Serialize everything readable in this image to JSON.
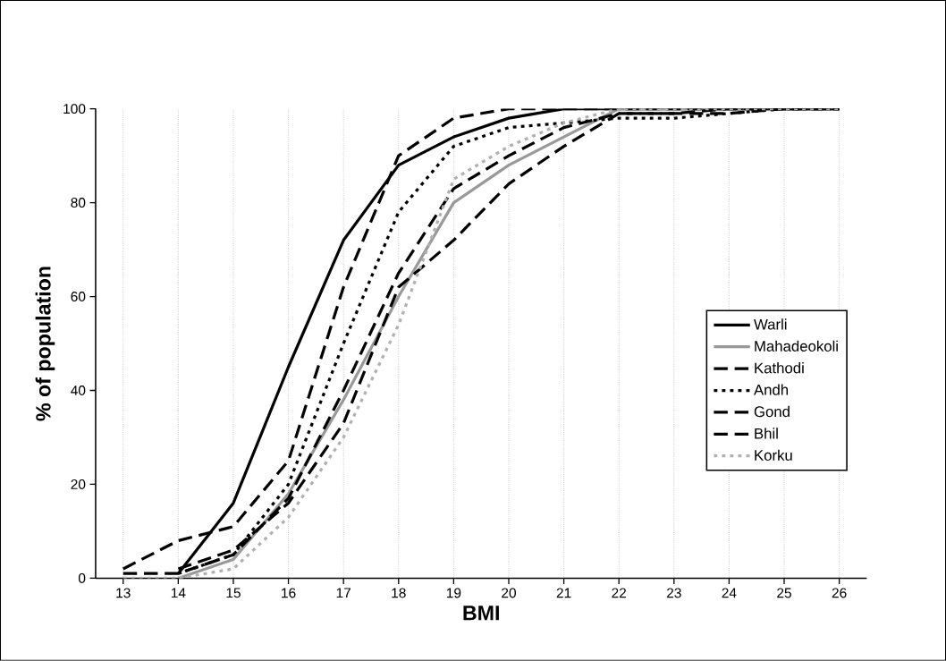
{
  "chart_data": {
    "type": "line",
    "xlabel": "BMI",
    "ylabel": "% of population",
    "xlim": [
      12.5,
      26.5
    ],
    "xticks": [
      13,
      14,
      15,
      16,
      17,
      18,
      19,
      20,
      21,
      22,
      23,
      24,
      25,
      26
    ],
    "ylim": [
      0,
      100
    ],
    "yticks": [
      0,
      20,
      40,
      60,
      80,
      100
    ],
    "grid": "x",
    "legend": "right",
    "marker": "none",
    "series": [
      {
        "name": "Warli",
        "color": "#000000",
        "line_style": "solid",
        "x": [
          14,
          15,
          16,
          17,
          18,
          19,
          20,
          21,
          22,
          23,
          24,
          25,
          26
        ],
        "values": [
          1,
          16,
          45,
          72,
          88,
          94,
          98,
          100,
          100,
          100,
          100,
          100,
          100
        ]
      },
      {
        "name": "Mahadeokoli",
        "color": "#999999",
        "line_style": "solid",
        "x": [
          14,
          15,
          16,
          17,
          18,
          19,
          20,
          21,
          22,
          23,
          24,
          25,
          26
        ],
        "values": [
          0,
          4,
          18,
          38,
          60,
          80,
          88,
          94,
          100,
          100,
          100,
          100,
          100
        ]
      },
      {
        "name": "Kathodi",
        "color": "#000000",
        "line_style": "dashed",
        "x": [
          13,
          14,
          15,
          16,
          17,
          18,
          19,
          20,
          21,
          22,
          23,
          24,
          25,
          26
        ],
        "values": [
          2,
          8,
          11,
          25,
          62,
          90,
          98,
          100,
          100,
          100,
          100,
          100,
          100,
          100
        ]
      },
      {
        "name": "Andh",
        "color": "#000000",
        "line_style": "dotted",
        "x": [
          14,
          15,
          16,
          17,
          18,
          19,
          20,
          21,
          22,
          23,
          24,
          25,
          26
        ],
        "values": [
          1,
          5,
          20,
          50,
          78,
          92,
          96,
          97,
          98,
          98,
          99,
          100,
          100
        ]
      },
      {
        "name": "Gond",
        "color": "#000000",
        "line_style": "dashed",
        "x": [
          13,
          14,
          15,
          16,
          17,
          18,
          19,
          20,
          21,
          22,
          23,
          24,
          25,
          26
        ],
        "values": [
          1,
          1,
          5,
          17,
          40,
          65,
          83,
          90,
          96,
          99,
          99,
          100,
          100,
          100
        ]
      },
      {
        "name": "Bhil",
        "color": "#000000",
        "line_style": "dashed",
        "x": [
          14,
          15,
          16,
          17,
          18,
          19,
          20,
          21,
          22,
          23,
          24,
          25,
          26
        ],
        "values": [
          2,
          6,
          16,
          33,
          62,
          72,
          84,
          92,
          99,
          99,
          99,
          100,
          100
        ]
      },
      {
        "name": "Korku",
        "color": "#b0b0b0",
        "line_style": "dotted",
        "x": [
          13,
          14,
          15,
          16,
          17,
          18,
          19,
          20,
          21,
          22,
          23,
          24,
          25,
          26
        ],
        "values": [
          0,
          0,
          2,
          13,
          30,
          54,
          85,
          92,
          97,
          100,
          100,
          100,
          100,
          100
        ]
      }
    ]
  }
}
